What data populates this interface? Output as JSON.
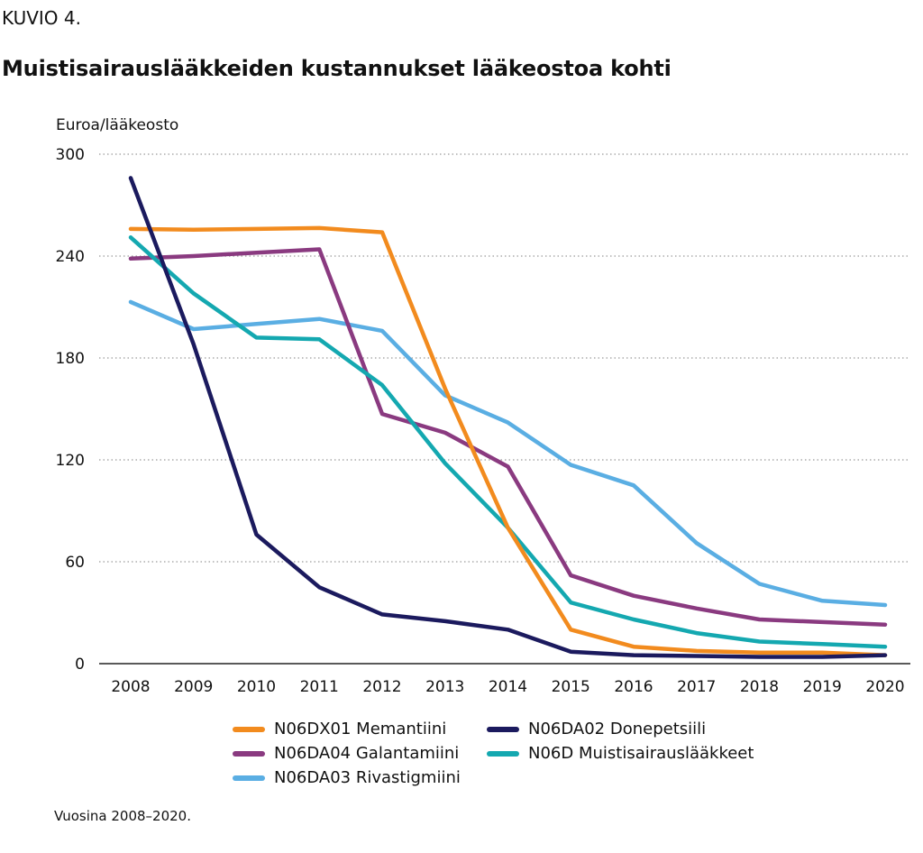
{
  "figure_label": "KUVIO 4.",
  "title": "Muistisairauslääkkeiden kustannukset lääkeostoa kohti",
  "footnote": "Vuosina 2008–2020.",
  "chart_data": {
    "type": "line",
    "ylabel": "Euroa/lääkeosto",
    "xlabel": "",
    "x": [
      "2008",
      "2009",
      "2010",
      "2011",
      "2012",
      "2013",
      "2014",
      "2015",
      "2016",
      "2017",
      "2018",
      "2019",
      "2020"
    ],
    "ylim": [
      0,
      300
    ],
    "yticks": [
      0,
      60,
      120,
      180,
      240,
      300
    ],
    "grid": "horizontal dotted",
    "legend_placement": "bottom",
    "series": [
      {
        "name": "N06DX01 Memantiini",
        "color": "#f28b1e",
        "values": [
          256,
          255.5,
          256,
          256.5,
          254,
          162,
          80,
          20,
          10,
          7.5,
          6.5,
          6.5,
          5
        ]
      },
      {
        "name": "N06DA02 Donepetsiili",
        "color": "#1b1a5e",
        "values": [
          286,
          188,
          76,
          45,
          29,
          25,
          20,
          7,
          5,
          4.5,
          4,
          4,
          5
        ]
      },
      {
        "name": "N06DA04 Galantamiini",
        "color": "#8a3a80",
        "values": [
          238.5,
          240,
          242,
          244,
          147,
          136,
          116,
          52,
          40,
          32.5,
          26,
          24.5,
          23
        ]
      },
      {
        "name": "N06D Muistisairauslääkkeet",
        "color": "#14a8b0",
        "values": [
          251,
          218,
          192,
          191,
          164,
          118,
          80,
          36,
          26,
          18,
          13,
          11.5,
          10
        ]
      },
      {
        "name": "N06DA03 Rivastigmiini",
        "color": "#5aaee3",
        "values": [
          213,
          197,
          200,
          203,
          196,
          158,
          142,
          117,
          105,
          71,
          47,
          37,
          34.5
        ]
      }
    ]
  }
}
